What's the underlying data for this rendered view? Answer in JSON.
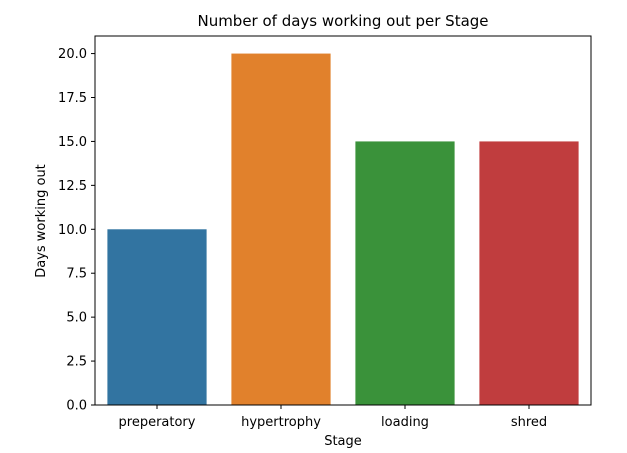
{
  "chart_data": {
    "type": "bar",
    "title": "Number of days working out per Stage",
    "xlabel": "Stage",
    "ylabel": "Days working out",
    "categories": [
      "preperatory",
      "hypertrophy",
      "loading",
      "shred"
    ],
    "values": [
      10,
      20,
      15,
      15
    ],
    "colors": [
      "#3274a1",
      "#e1812c",
      "#3a923a",
      "#c03d3e"
    ],
    "ylim": [
      0,
      21
    ],
    "yticks": [
      "0.0",
      "2.5",
      "5.0",
      "7.5",
      "10.0",
      "12.5",
      "15.0",
      "17.5",
      "20.0"
    ],
    "grid": false,
    "legend": "none"
  }
}
